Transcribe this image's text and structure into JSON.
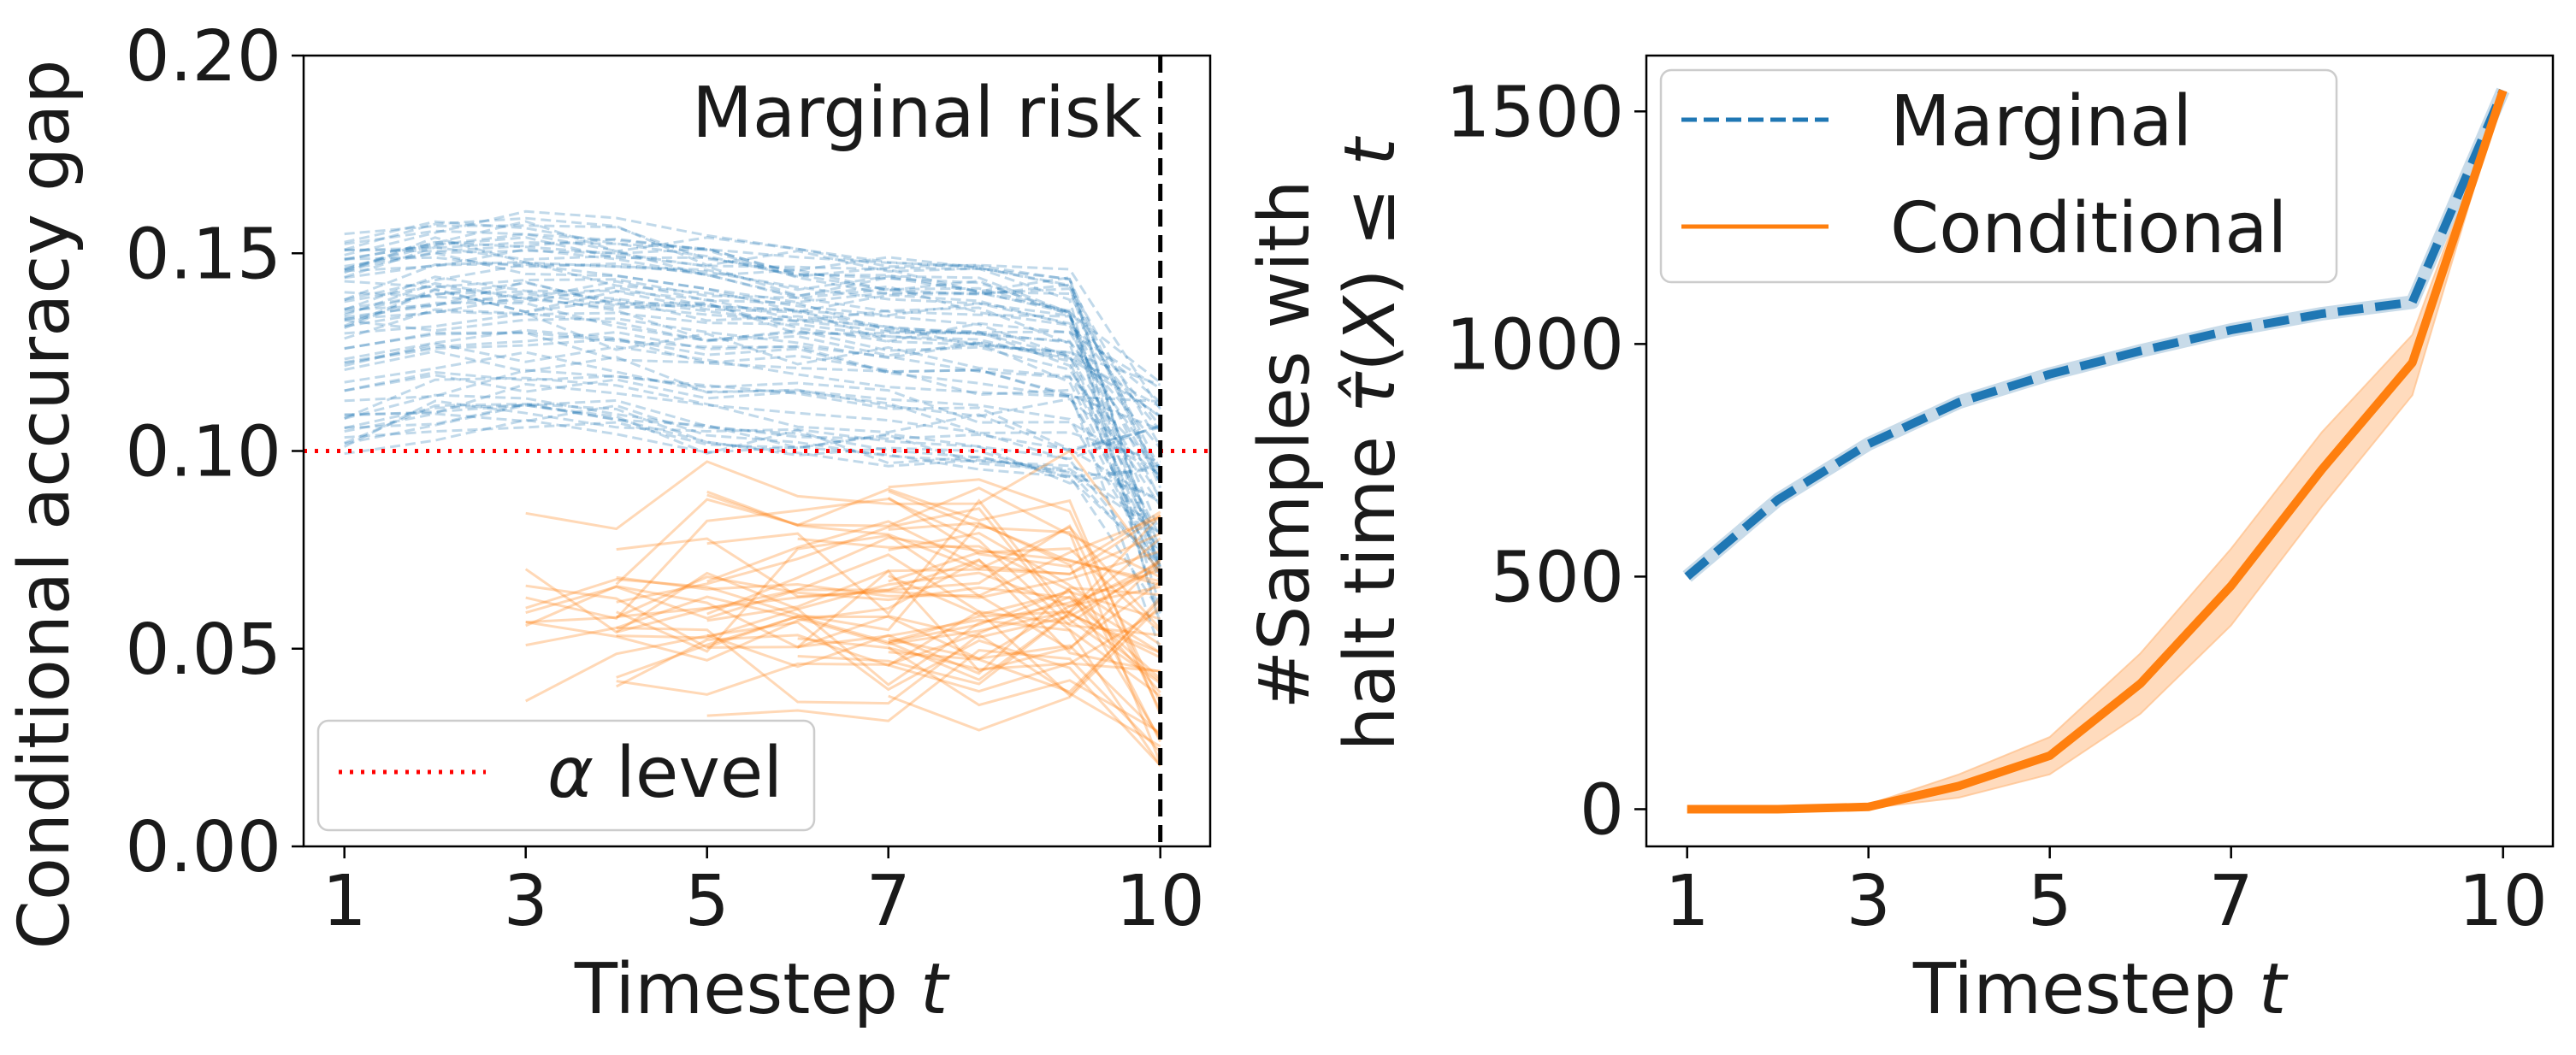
{
  "colors": {
    "marginal": "#1f77b4",
    "conditional": "#ff7f0e",
    "alpha_line": "#ff0000",
    "marginal_marker": "#000000",
    "band": "#ffbe86"
  },
  "chart_data": [
    {
      "type": "line",
      "title": "",
      "xlabel_main": "Timestep ",
      "xlabel_var": "t",
      "ylabel": "Conditional accuracy gap",
      "xticks": [
        1,
        3,
        5,
        7,
        10
      ],
      "xtick_labels": [
        "1",
        "3",
        "5",
        "7",
        "10"
      ],
      "xlim": [
        0.55,
        10.55
      ],
      "ylim": [
        0.0,
        0.2
      ],
      "yticks": [
        0.0,
        0.05,
        0.1,
        0.15,
        0.2
      ],
      "ytick_labels": [
        "0.00",
        "0.05",
        "0.10",
        "0.15",
        "0.20"
      ],
      "alpha_level": 0.1,
      "marginal_risk_x": 10,
      "annotation": "Marginal risk",
      "legend": {
        "position": "lower-left",
        "entries": [
          {
            "symbol": "α",
            "label": " level",
            "style": "dotted",
            "color_key": "alpha_line"
          }
        ]
      },
      "series_summary": [
        {
          "name": "Marginal (per-group runs, ~60 dashed lines)",
          "x_start": 1,
          "approx_mean": [
            0.127,
            0.131,
            0.132,
            0.13,
            0.127,
            0.125,
            0.123,
            0.121,
            0.118,
            0.085
          ],
          "approx_range_t1": [
            0.093,
            0.155
          ]
        },
        {
          "name": "Conditional (per-group runs, ~50 solid lines)",
          "x_start": "varies 3-7",
          "approx_range_t9": [
            0.035,
            0.1
          ],
          "approx_range_t10": [
            0.02,
            0.085
          ]
        }
      ]
    },
    {
      "type": "line",
      "title": "",
      "xlabel_main": "Timestep ",
      "xlabel_var": "t",
      "ylabel_line1": "#Samples with",
      "ylabel_line2_prefix": "halt time ",
      "ylabel_tau": "τ̂",
      "ylabel_line2_mid": "(",
      "ylabel_X": "X",
      "ylabel_line2_rel": ") ≤ ",
      "ylabel_t": "t",
      "xticks": [
        1,
        3,
        5,
        7,
        10
      ],
      "xtick_labels": [
        "1",
        "3",
        "5",
        "7",
        "10"
      ],
      "xlim": [
        0.55,
        10.55
      ],
      "ylim": [
        -80,
        1620
      ],
      "yticks": [
        0,
        500,
        1000,
        1500
      ],
      "ytick_labels": [
        "0",
        "500",
        "1000",
        "1500"
      ],
      "legend": {
        "position": "top-left",
        "entries": [
          {
            "label": "Marginal",
            "style": "dashed",
            "color_key": "marginal"
          },
          {
            "label": "Conditional",
            "style": "solid",
            "color_key": "conditional"
          }
        ]
      },
      "x": [
        1,
        2,
        3,
        4,
        5,
        6,
        7,
        8,
        9,
        10
      ],
      "series": [
        {
          "name": "Marginal",
          "values": [
            500,
            665,
            785,
            875,
            935,
            985,
            1030,
            1065,
            1090,
            1545
          ]
        },
        {
          "name": "Conditional",
          "values": [
            0,
            0,
            5,
            50,
            115,
            270,
            480,
            730,
            960,
            1545
          ],
          "band_low": [
            0,
            0,
            2,
            25,
            75,
            205,
            395,
            650,
            890,
            1545
          ],
          "band_high": [
            0,
            2,
            10,
            75,
            155,
            335,
            560,
            810,
            1020,
            1545
          ]
        }
      ]
    }
  ]
}
